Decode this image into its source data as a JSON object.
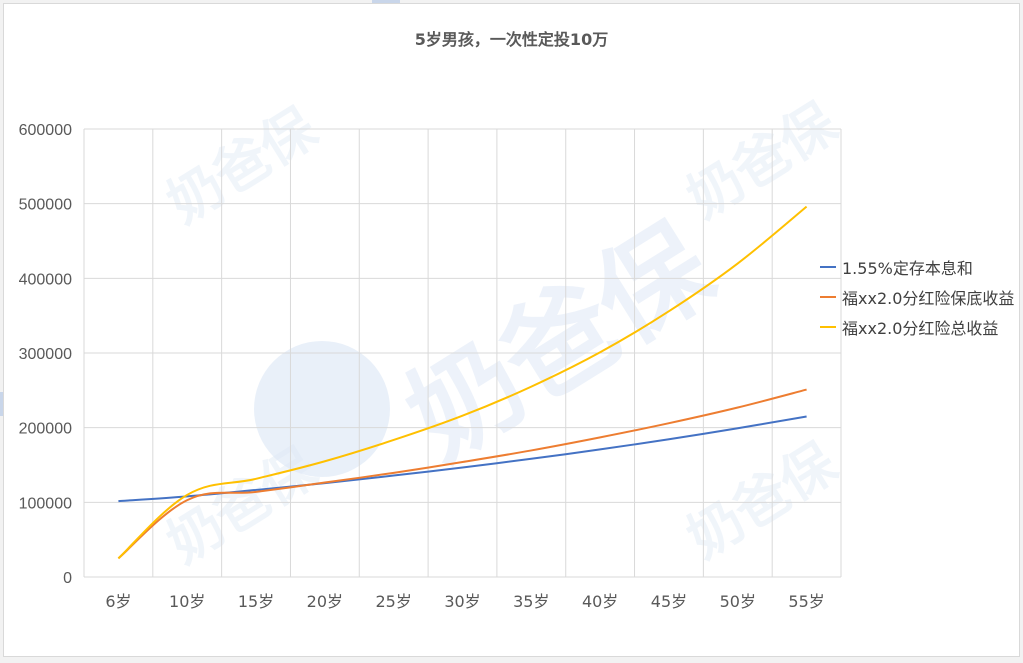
{
  "chart_data": {
    "type": "line",
    "title": "5岁男孩，一次性定投10万",
    "categories": [
      "6岁",
      "10岁",
      "15岁",
      "20岁",
      "25岁",
      "30岁",
      "35岁",
      "40岁",
      "45岁",
      "50岁",
      "55岁"
    ],
    "y_ticks": [
      "0",
      "100000",
      "200000",
      "300000",
      "400000",
      "500000",
      "600000"
    ],
    "ylim": [
      0,
      600000
    ],
    "grid": true,
    "legend_position": "right",
    "watermark_text": "奶爸保",
    "series": [
      {
        "name": "1.55%定存本息和",
        "color": "#4472c4",
        "values": [
          101550,
          108000,
          116600,
          125800,
          135900,
          146700,
          158300,
          170900,
          184500,
          199200,
          215000
        ]
      },
      {
        "name": "福xx2.0分红险保底收益",
        "color": "#ed7d31",
        "values": [
          25000,
          103000,
          114000,
          126500,
          139500,
          154000,
          169500,
          187000,
          206000,
          227000,
          251000
        ]
      },
      {
        "name": "福xx2.0分红险总收益",
        "color": "#ffc000",
        "values": [
          25000,
          110000,
          131500,
          155000,
          183500,
          216000,
          255000,
          301000,
          356000,
          420000,
          496000
        ]
      }
    ]
  }
}
